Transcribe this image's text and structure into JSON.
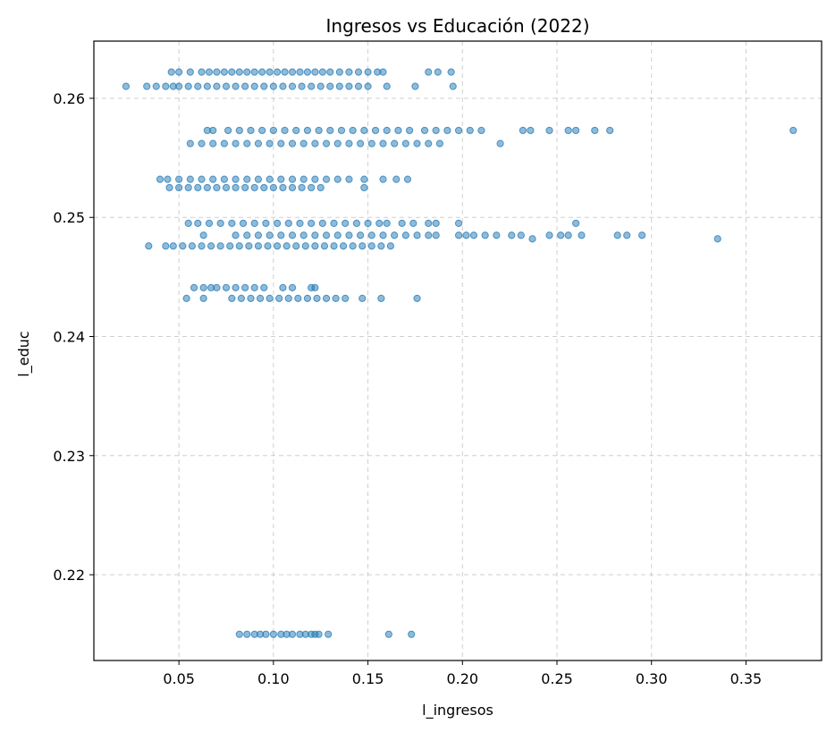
{
  "chart_data": {
    "type": "scatter",
    "title": "Ingresos vs Educación (2022)",
    "xlabel": "l_ingresos",
    "ylabel": "l_educ",
    "xlim": [
      0.005,
      0.39
    ],
    "ylim": [
      0.2128,
      0.2648
    ],
    "xticks": [
      0.05,
      0.1,
      0.15,
      0.2,
      0.25,
      0.3,
      0.35
    ],
    "xtick_labels": [
      "0.05",
      "0.10",
      "0.15",
      "0.20",
      "0.25",
      "0.30",
      "0.35"
    ],
    "yticks": [
      0.22,
      0.23,
      0.24,
      0.25,
      0.26
    ],
    "ytick_labels": [
      "0.22",
      "0.23",
      "0.24",
      "0.25",
      "0.26"
    ],
    "grid": true,
    "marker_color": "#1f77b4",
    "marker_alpha": 0.5,
    "points": [
      [
        0.022,
        0.261
      ],
      [
        0.033,
        0.261
      ],
      [
        0.038,
        0.261
      ],
      [
        0.043,
        0.261
      ],
      [
        0.047,
        0.261
      ],
      [
        0.05,
        0.261
      ],
      [
        0.055,
        0.261
      ],
      [
        0.06,
        0.261
      ],
      [
        0.065,
        0.261
      ],
      [
        0.07,
        0.261
      ],
      [
        0.075,
        0.261
      ],
      [
        0.08,
        0.261
      ],
      [
        0.085,
        0.261
      ],
      [
        0.09,
        0.261
      ],
      [
        0.095,
        0.261
      ],
      [
        0.1,
        0.261
      ],
      [
        0.105,
        0.261
      ],
      [
        0.11,
        0.261
      ],
      [
        0.115,
        0.261
      ],
      [
        0.12,
        0.261
      ],
      [
        0.125,
        0.261
      ],
      [
        0.13,
        0.261
      ],
      [
        0.135,
        0.261
      ],
      [
        0.14,
        0.261
      ],
      [
        0.145,
        0.261
      ],
      [
        0.15,
        0.261
      ],
      [
        0.16,
        0.261
      ],
      [
        0.175,
        0.261
      ],
      [
        0.195,
        0.261
      ],
      [
        0.046,
        0.2622
      ],
      [
        0.05,
        0.2622
      ],
      [
        0.056,
        0.2622
      ],
      [
        0.062,
        0.2622
      ],
      [
        0.066,
        0.2622
      ],
      [
        0.07,
        0.2622
      ],
      [
        0.074,
        0.2622
      ],
      [
        0.078,
        0.2622
      ],
      [
        0.082,
        0.2622
      ],
      [
        0.086,
        0.2622
      ],
      [
        0.09,
        0.2622
      ],
      [
        0.094,
        0.2622
      ],
      [
        0.098,
        0.2622
      ],
      [
        0.102,
        0.2622
      ],
      [
        0.106,
        0.2622
      ],
      [
        0.11,
        0.2622
      ],
      [
        0.114,
        0.2622
      ],
      [
        0.118,
        0.2622
      ],
      [
        0.122,
        0.2622
      ],
      [
        0.126,
        0.2622
      ],
      [
        0.13,
        0.2622
      ],
      [
        0.135,
        0.2622
      ],
      [
        0.14,
        0.2622
      ],
      [
        0.145,
        0.2622
      ],
      [
        0.15,
        0.2622
      ],
      [
        0.155,
        0.2622
      ],
      [
        0.158,
        0.2622
      ],
      [
        0.182,
        0.2622
      ],
      [
        0.187,
        0.2622
      ],
      [
        0.194,
        0.2622
      ],
      [
        0.065,
        0.2573
      ],
      [
        0.068,
        0.2573
      ],
      [
        0.076,
        0.2573
      ],
      [
        0.082,
        0.2573
      ],
      [
        0.088,
        0.2573
      ],
      [
        0.094,
        0.2573
      ],
      [
        0.1,
        0.2573
      ],
      [
        0.106,
        0.2573
      ],
      [
        0.112,
        0.2573
      ],
      [
        0.118,
        0.2573
      ],
      [
        0.124,
        0.2573
      ],
      [
        0.13,
        0.2573
      ],
      [
        0.136,
        0.2573
      ],
      [
        0.142,
        0.2573
      ],
      [
        0.148,
        0.2573
      ],
      [
        0.154,
        0.2573
      ],
      [
        0.16,
        0.2573
      ],
      [
        0.166,
        0.2573
      ],
      [
        0.172,
        0.2573
      ],
      [
        0.18,
        0.2573
      ],
      [
        0.186,
        0.2573
      ],
      [
        0.192,
        0.2573
      ],
      [
        0.198,
        0.2573
      ],
      [
        0.204,
        0.2573
      ],
      [
        0.21,
        0.2573
      ],
      [
        0.232,
        0.2573
      ],
      [
        0.236,
        0.2573
      ],
      [
        0.246,
        0.2573
      ],
      [
        0.256,
        0.2573
      ],
      [
        0.26,
        0.2573
      ],
      [
        0.27,
        0.2573
      ],
      [
        0.278,
        0.2573
      ],
      [
        0.375,
        0.2573
      ],
      [
        0.056,
        0.2562
      ],
      [
        0.062,
        0.2562
      ],
      [
        0.068,
        0.2562
      ],
      [
        0.074,
        0.2562
      ],
      [
        0.08,
        0.2562
      ],
      [
        0.086,
        0.2562
      ],
      [
        0.092,
        0.2562
      ],
      [
        0.098,
        0.2562
      ],
      [
        0.104,
        0.2562
      ],
      [
        0.11,
        0.2562
      ],
      [
        0.116,
        0.2562
      ],
      [
        0.122,
        0.2562
      ],
      [
        0.128,
        0.2562
      ],
      [
        0.134,
        0.2562
      ],
      [
        0.14,
        0.2562
      ],
      [
        0.146,
        0.2562
      ],
      [
        0.152,
        0.2562
      ],
      [
        0.158,
        0.2562
      ],
      [
        0.164,
        0.2562
      ],
      [
        0.17,
        0.2562
      ],
      [
        0.176,
        0.2562
      ],
      [
        0.182,
        0.2562
      ],
      [
        0.188,
        0.2562
      ],
      [
        0.22,
        0.2562
      ],
      [
        0.04,
        0.2532
      ],
      [
        0.044,
        0.2532
      ],
      [
        0.05,
        0.2532
      ],
      [
        0.056,
        0.2532
      ],
      [
        0.062,
        0.2532
      ],
      [
        0.068,
        0.2532
      ],
      [
        0.074,
        0.2532
      ],
      [
        0.08,
        0.2532
      ],
      [
        0.086,
        0.2532
      ],
      [
        0.092,
        0.2532
      ],
      [
        0.098,
        0.2532
      ],
      [
        0.104,
        0.2532
      ],
      [
        0.11,
        0.2532
      ],
      [
        0.116,
        0.2532
      ],
      [
        0.122,
        0.2532
      ],
      [
        0.128,
        0.2532
      ],
      [
        0.134,
        0.2532
      ],
      [
        0.14,
        0.2532
      ],
      [
        0.148,
        0.2532
      ],
      [
        0.158,
        0.2532
      ],
      [
        0.165,
        0.2532
      ],
      [
        0.171,
        0.2532
      ],
      [
        0.045,
        0.2525
      ],
      [
        0.05,
        0.2525
      ],
      [
        0.055,
        0.2525
      ],
      [
        0.06,
        0.2525
      ],
      [
        0.065,
        0.2525
      ],
      [
        0.07,
        0.2525
      ],
      [
        0.075,
        0.2525
      ],
      [
        0.08,
        0.2525
      ],
      [
        0.085,
        0.2525
      ],
      [
        0.09,
        0.2525
      ],
      [
        0.095,
        0.2525
      ],
      [
        0.1,
        0.2525
      ],
      [
        0.105,
        0.2525
      ],
      [
        0.11,
        0.2525
      ],
      [
        0.115,
        0.2525
      ],
      [
        0.12,
        0.2525
      ],
      [
        0.125,
        0.2525
      ],
      [
        0.148,
        0.2525
      ],
      [
        0.055,
        0.2495
      ],
      [
        0.06,
        0.2495
      ],
      [
        0.066,
        0.2495
      ],
      [
        0.072,
        0.2495
      ],
      [
        0.078,
        0.2495
      ],
      [
        0.084,
        0.2495
      ],
      [
        0.09,
        0.2495
      ],
      [
        0.096,
        0.2495
      ],
      [
        0.102,
        0.2495
      ],
      [
        0.108,
        0.2495
      ],
      [
        0.114,
        0.2495
      ],
      [
        0.12,
        0.2495
      ],
      [
        0.126,
        0.2495
      ],
      [
        0.132,
        0.2495
      ],
      [
        0.138,
        0.2495
      ],
      [
        0.144,
        0.2495
      ],
      [
        0.15,
        0.2495
      ],
      [
        0.156,
        0.2495
      ],
      [
        0.16,
        0.2495
      ],
      [
        0.168,
        0.2495
      ],
      [
        0.174,
        0.2495
      ],
      [
        0.182,
        0.2495
      ],
      [
        0.186,
        0.2495
      ],
      [
        0.198,
        0.2495
      ],
      [
        0.26,
        0.2495
      ],
      [
        0.063,
        0.2485
      ],
      [
        0.08,
        0.2485
      ],
      [
        0.086,
        0.2485
      ],
      [
        0.092,
        0.2485
      ],
      [
        0.098,
        0.2485
      ],
      [
        0.104,
        0.2485
      ],
      [
        0.11,
        0.2485
      ],
      [
        0.116,
        0.2485
      ],
      [
        0.122,
        0.2485
      ],
      [
        0.128,
        0.2485
      ],
      [
        0.134,
        0.2485
      ],
      [
        0.14,
        0.2485
      ],
      [
        0.146,
        0.2485
      ],
      [
        0.152,
        0.2485
      ],
      [
        0.158,
        0.2485
      ],
      [
        0.164,
        0.2485
      ],
      [
        0.17,
        0.2485
      ],
      [
        0.176,
        0.2485
      ],
      [
        0.182,
        0.2485
      ],
      [
        0.186,
        0.2485
      ],
      [
        0.198,
        0.2485
      ],
      [
        0.202,
        0.2485
      ],
      [
        0.206,
        0.2485
      ],
      [
        0.212,
        0.2485
      ],
      [
        0.218,
        0.2485
      ],
      [
        0.226,
        0.2485
      ],
      [
        0.231,
        0.2485
      ],
      [
        0.246,
        0.2485
      ],
      [
        0.252,
        0.2485
      ],
      [
        0.256,
        0.2485
      ],
      [
        0.263,
        0.2485
      ],
      [
        0.282,
        0.2485
      ],
      [
        0.287,
        0.2485
      ],
      [
        0.295,
        0.2485
      ],
      [
        0.237,
        0.2482
      ],
      [
        0.335,
        0.2482
      ],
      [
        0.034,
        0.2476
      ],
      [
        0.043,
        0.2476
      ],
      [
        0.047,
        0.2476
      ],
      [
        0.052,
        0.2476
      ],
      [
        0.057,
        0.2476
      ],
      [
        0.062,
        0.2476
      ],
      [
        0.067,
        0.2476
      ],
      [
        0.072,
        0.2476
      ],
      [
        0.077,
        0.2476
      ],
      [
        0.082,
        0.2476
      ],
      [
        0.087,
        0.2476
      ],
      [
        0.092,
        0.2476
      ],
      [
        0.097,
        0.2476
      ],
      [
        0.102,
        0.2476
      ],
      [
        0.107,
        0.2476
      ],
      [
        0.112,
        0.2476
      ],
      [
        0.117,
        0.2476
      ],
      [
        0.122,
        0.2476
      ],
      [
        0.127,
        0.2476
      ],
      [
        0.132,
        0.2476
      ],
      [
        0.137,
        0.2476
      ],
      [
        0.142,
        0.2476
      ],
      [
        0.147,
        0.2476
      ],
      [
        0.152,
        0.2476
      ],
      [
        0.157,
        0.2476
      ],
      [
        0.162,
        0.2476
      ],
      [
        0.058,
        0.2441
      ],
      [
        0.063,
        0.2441
      ],
      [
        0.067,
        0.2441
      ],
      [
        0.07,
        0.2441
      ],
      [
        0.075,
        0.2441
      ],
      [
        0.08,
        0.2441
      ],
      [
        0.085,
        0.2441
      ],
      [
        0.09,
        0.2441
      ],
      [
        0.095,
        0.2441
      ],
      [
        0.105,
        0.2441
      ],
      [
        0.11,
        0.2441
      ],
      [
        0.12,
        0.2441
      ],
      [
        0.122,
        0.2441
      ],
      [
        0.054,
        0.2432
      ],
      [
        0.063,
        0.2432
      ],
      [
        0.078,
        0.2432
      ],
      [
        0.083,
        0.2432
      ],
      [
        0.088,
        0.2432
      ],
      [
        0.093,
        0.2432
      ],
      [
        0.098,
        0.2432
      ],
      [
        0.103,
        0.2432
      ],
      [
        0.108,
        0.2432
      ],
      [
        0.113,
        0.2432
      ],
      [
        0.118,
        0.2432
      ],
      [
        0.123,
        0.2432
      ],
      [
        0.128,
        0.2432
      ],
      [
        0.133,
        0.2432
      ],
      [
        0.138,
        0.2432
      ],
      [
        0.147,
        0.2432
      ],
      [
        0.157,
        0.2432
      ],
      [
        0.176,
        0.2432
      ],
      [
        0.082,
        0.215
      ],
      [
        0.086,
        0.215
      ],
      [
        0.09,
        0.215
      ],
      [
        0.093,
        0.215
      ],
      [
        0.096,
        0.215
      ],
      [
        0.1,
        0.215
      ],
      [
        0.104,
        0.215
      ],
      [
        0.107,
        0.215
      ],
      [
        0.11,
        0.215
      ],
      [
        0.114,
        0.215
      ],
      [
        0.117,
        0.215
      ],
      [
        0.12,
        0.215
      ],
      [
        0.122,
        0.215
      ],
      [
        0.124,
        0.215
      ],
      [
        0.129,
        0.215
      ],
      [
        0.161,
        0.215
      ],
      [
        0.173,
        0.215
      ]
    ]
  }
}
